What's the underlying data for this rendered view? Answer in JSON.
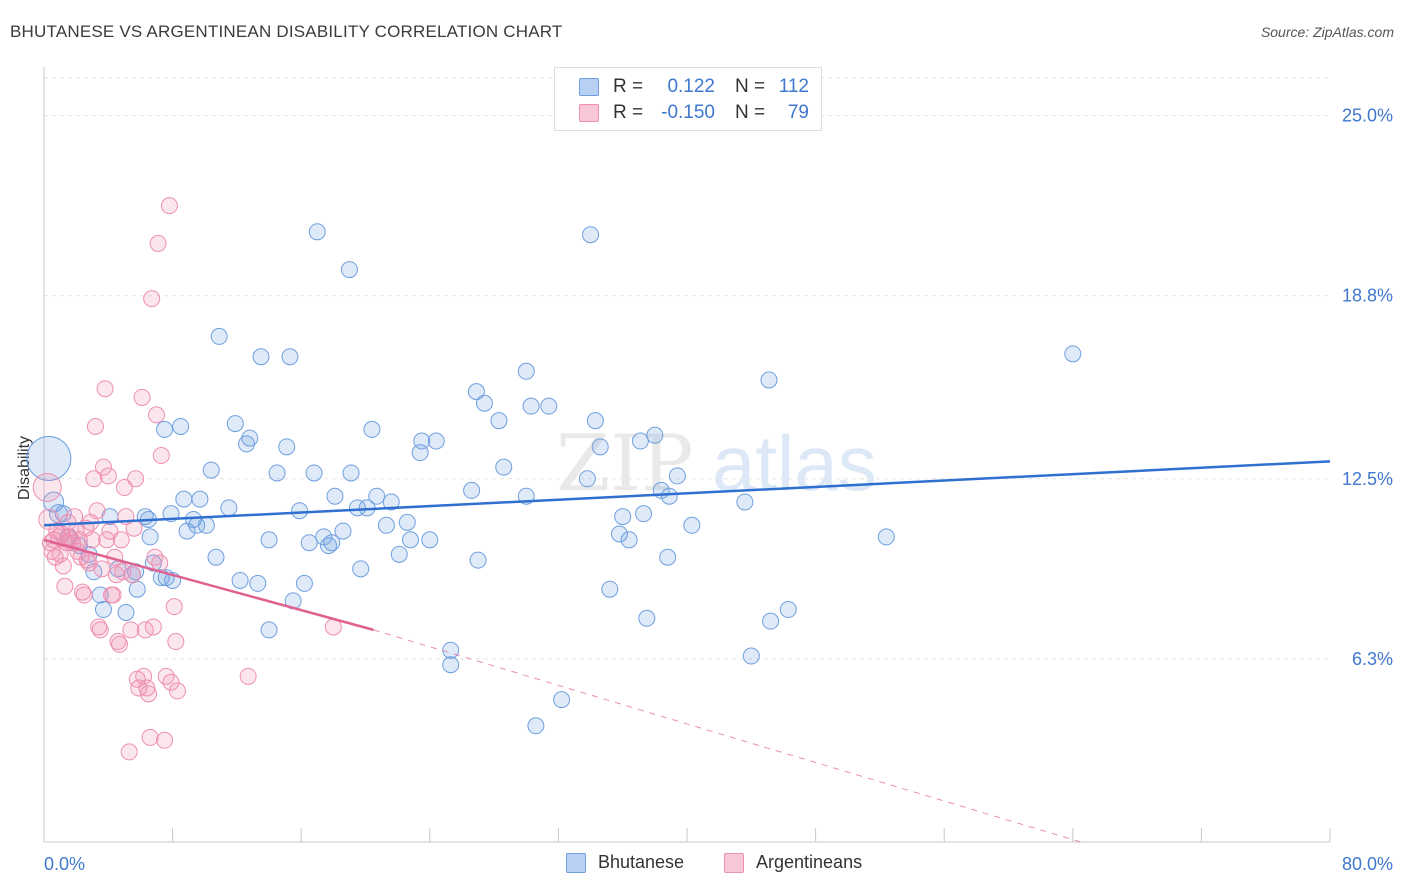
{
  "title": "BHUTANESE VS ARGENTINEAN DISABILITY CORRELATION CHART",
  "source": "Source: ZipAtlas.com",
  "watermark_a": "ZIP",
  "watermark_b": "atlas",
  "colors": {
    "blue": "#6f9fe0",
    "blue_line": "#2f6fd0",
    "pink": "#ef8fb0",
    "pink_line": "#e0608f",
    "tick_text": "#3f78cf"
  },
  "legend": {
    "rows": [
      {
        "r_label": "R =",
        "r_value": "0.122",
        "n_label": "N =",
        "n_value": "112"
      },
      {
        "r_label": "R =",
        "r_value": "-0.150",
        "n_label": "N =",
        "n_value": "79"
      }
    ]
  },
  "bottom_legend": [
    "Bhutanese",
    "Argentineans"
  ],
  "chart_data": {
    "type": "scatter",
    "title": "BHUTANESE VS ARGENTINEAN DISABILITY CORRELATION CHART",
    "xlabel": "",
    "ylabel": "Disability",
    "xlim": [
      0,
      80
    ],
    "ylim": [
      0,
      26.5
    ],
    "x_tick_labels": [
      "0.0%",
      "80.0%"
    ],
    "y_ticks": [
      6.3,
      12.5,
      18.8,
      25.0
    ],
    "y_tick_labels": [
      "6.3%",
      "12.5%",
      "18.8%",
      "25.0%"
    ],
    "grid": true,
    "legend_position": "top-center",
    "series": [
      {
        "name": "Bhutanese",
        "color": "#6f9fe0",
        "trend": {
          "x": [
            0,
            80
          ],
          "y": [
            10.9,
            13.1
          ],
          "style": "solid"
        },
        "points": [
          [
            0.3,
            13.2,
            22
          ],
          [
            0.6,
            11.7,
            10
          ],
          [
            0.9,
            11.3,
            9
          ],
          [
            1.2,
            11.3,
            8
          ],
          [
            1.5,
            10.5,
            8
          ],
          [
            2.2,
            10.2,
            8
          ],
          [
            2.8,
            9.9,
            8
          ],
          [
            3.1,
            9.3,
            8
          ],
          [
            3.5,
            8.5,
            8
          ],
          [
            3.7,
            8.0,
            8
          ],
          [
            4.1,
            11.2,
            8
          ],
          [
            4.6,
            9.4,
            8
          ],
          [
            5.1,
            7.9,
            8
          ],
          [
            5.5,
            9.2,
            8
          ],
          [
            5.7,
            9.3,
            8
          ],
          [
            5.8,
            8.7,
            8
          ],
          [
            6.3,
            11.2,
            8
          ],
          [
            6.5,
            11.1,
            8
          ],
          [
            6.6,
            10.5,
            8
          ],
          [
            6.8,
            9.6,
            8
          ],
          [
            7.3,
            9.1,
            8
          ],
          [
            7.5,
            14.2,
            8
          ],
          [
            7.6,
            9.1,
            8
          ],
          [
            7.9,
            11.3,
            8
          ],
          [
            8.0,
            9.0,
            8
          ],
          [
            8.5,
            14.3,
            8
          ],
          [
            8.7,
            11.8,
            8
          ],
          [
            8.9,
            10.7,
            8
          ],
          [
            9.3,
            11.1,
            8
          ],
          [
            9.5,
            10.9,
            8
          ],
          [
            9.7,
            11.8,
            8
          ],
          [
            10.1,
            10.9,
            8
          ],
          [
            10.4,
            12.8,
            8
          ],
          [
            10.7,
            9.8,
            8
          ],
          [
            10.9,
            17.4,
            8
          ],
          [
            11.5,
            11.5,
            8
          ],
          [
            11.9,
            14.4,
            8
          ],
          [
            12.2,
            9.0,
            8
          ],
          [
            12.6,
            13.7,
            8
          ],
          [
            12.8,
            13.9,
            8
          ],
          [
            13.3,
            8.9,
            8
          ],
          [
            13.5,
            16.7,
            8
          ],
          [
            14.0,
            10.4,
            8
          ],
          [
            14.0,
            7.3,
            8
          ],
          [
            14.5,
            12.7,
            8
          ],
          [
            15.1,
            13.6,
            8
          ],
          [
            15.3,
            16.7,
            8
          ],
          [
            15.5,
            8.3,
            8
          ],
          [
            15.9,
            11.4,
            8
          ],
          [
            16.2,
            8.9,
            8
          ],
          [
            16.5,
            10.3,
            8
          ],
          [
            16.8,
            12.7,
            8
          ],
          [
            17.0,
            21.0,
            8
          ],
          [
            17.4,
            10.5,
            8
          ],
          [
            17.7,
            10.2,
            8
          ],
          [
            17.9,
            10.3,
            8
          ],
          [
            18.1,
            11.9,
            8
          ],
          [
            18.6,
            10.7,
            8
          ],
          [
            19.0,
            19.7,
            8
          ],
          [
            19.1,
            12.7,
            8
          ],
          [
            19.5,
            11.5,
            8
          ],
          [
            19.7,
            9.4,
            8
          ],
          [
            20.1,
            11.5,
            8
          ],
          [
            20.4,
            14.2,
            8
          ],
          [
            20.7,
            11.9,
            8
          ],
          [
            21.3,
            10.9,
            8
          ],
          [
            21.6,
            11.7,
            8
          ],
          [
            22.1,
            9.9,
            8
          ],
          [
            22.6,
            11.0,
            8
          ],
          [
            22.8,
            10.4,
            8
          ],
          [
            23.4,
            13.4,
            8
          ],
          [
            23.5,
            13.8,
            8
          ],
          [
            24.0,
            10.4,
            8
          ],
          [
            24.4,
            13.8,
            8
          ],
          [
            25.3,
            6.6,
            8
          ],
          [
            25.3,
            6.1,
            8
          ],
          [
            26.6,
            12.1,
            8
          ],
          [
            26.9,
            15.5,
            8
          ],
          [
            27.0,
            9.7,
            8
          ],
          [
            27.4,
            15.1,
            8
          ],
          [
            28.3,
            14.5,
            8
          ],
          [
            28.6,
            12.9,
            8
          ],
          [
            30.0,
            16.2,
            8
          ],
          [
            30.0,
            11.9,
            8
          ],
          [
            30.3,
            15.0,
            8
          ],
          [
            30.6,
            4.0,
            8
          ],
          [
            31.4,
            15.0,
            8
          ],
          [
            32.2,
            4.9,
            8
          ],
          [
            33.8,
            12.5,
            8
          ],
          [
            34.0,
            20.9,
            8
          ],
          [
            34.3,
            14.5,
            8
          ],
          [
            34.6,
            13.6,
            8
          ],
          [
            35.2,
            8.7,
            8
          ],
          [
            35.8,
            10.6,
            8
          ],
          [
            36.0,
            11.2,
            8
          ],
          [
            36.4,
            10.4,
            8
          ],
          [
            37.1,
            13.8,
            8
          ],
          [
            37.3,
            11.3,
            8
          ],
          [
            37.5,
            7.7,
            8
          ],
          [
            38.0,
            14.0,
            8
          ],
          [
            38.4,
            12.1,
            8
          ],
          [
            38.8,
            9.8,
            8
          ],
          [
            38.9,
            11.9,
            8
          ],
          [
            39.4,
            12.6,
            8
          ],
          [
            40.3,
            10.9,
            8
          ],
          [
            43.6,
            11.7,
            8
          ],
          [
            44.0,
            6.4,
            8
          ],
          [
            45.1,
            15.9,
            8
          ],
          [
            45.2,
            7.6,
            8
          ],
          [
            46.3,
            8.0,
            8
          ],
          [
            64.0,
            16.8,
            8
          ],
          [
            52.4,
            10.5,
            8
          ]
        ]
      },
      {
        "name": "Argentineans",
        "color": "#ef8fb0",
        "trend": {
          "x": [
            0,
            20.5
          ],
          "y": [
            10.4,
            7.3
          ],
          "style": "solid"
        },
        "trend_extension": {
          "x": [
            20.5,
            64.5
          ],
          "y": [
            7.3,
            0.0
          ],
          "style": "dashed"
        },
        "points": [
          [
            0.2,
            12.2,
            14
          ],
          [
            0.3,
            11.1,
            10
          ],
          [
            0.4,
            10.3,
            8
          ],
          [
            0.5,
            10.0,
            8
          ],
          [
            0.6,
            10.4,
            8
          ],
          [
            0.7,
            9.8,
            8
          ],
          [
            0.8,
            10.7,
            8
          ],
          [
            0.9,
            10.5,
            8
          ],
          [
            1.0,
            9.9,
            8
          ],
          [
            1.1,
            10.6,
            8
          ],
          [
            1.2,
            9.5,
            8
          ],
          [
            1.3,
            8.8,
            8
          ],
          [
            1.4,
            10.3,
            8
          ],
          [
            1.5,
            11.0,
            8
          ],
          [
            1.6,
            10.5,
            8
          ],
          [
            1.7,
            10.4,
            8
          ],
          [
            1.8,
            10.3,
            8
          ],
          [
            1.9,
            11.2,
            8
          ],
          [
            2.0,
            10.7,
            8
          ],
          [
            2.1,
            10.0,
            8
          ],
          [
            2.2,
            10.4,
            8
          ],
          [
            2.3,
            9.8,
            8
          ],
          [
            2.4,
            8.6,
            8
          ],
          [
            2.5,
            8.5,
            8
          ],
          [
            2.6,
            10.8,
            8
          ],
          [
            2.7,
            9.7,
            8
          ],
          [
            2.8,
            9.6,
            8
          ],
          [
            2.9,
            11.0,
            8
          ],
          [
            3.0,
            10.4,
            8
          ],
          [
            3.1,
            12.5,
            8
          ],
          [
            3.2,
            14.3,
            8
          ],
          [
            3.3,
            11.4,
            8
          ],
          [
            3.4,
            7.4,
            8
          ],
          [
            3.5,
            7.3,
            8
          ],
          [
            3.6,
            9.4,
            8
          ],
          [
            3.7,
            12.9,
            8
          ],
          [
            3.8,
            15.6,
            8
          ],
          [
            3.9,
            10.4,
            8
          ],
          [
            4.0,
            12.6,
            8
          ],
          [
            4.1,
            10.7,
            8
          ],
          [
            4.2,
            8.5,
            8
          ],
          [
            4.3,
            8.5,
            8
          ],
          [
            4.4,
            9.8,
            8
          ],
          [
            4.5,
            9.2,
            8
          ],
          [
            4.6,
            6.9,
            8
          ],
          [
            4.7,
            6.8,
            8
          ],
          [
            4.8,
            10.4,
            8
          ],
          [
            4.9,
            9.3,
            8
          ],
          [
            5.0,
            12.2,
            8
          ],
          [
            5.1,
            11.2,
            8
          ],
          [
            5.3,
            3.1,
            8
          ],
          [
            5.4,
            7.3,
            8
          ],
          [
            5.5,
            9.2,
            8
          ],
          [
            5.6,
            10.8,
            8
          ],
          [
            5.7,
            12.5,
            8
          ],
          [
            5.8,
            5.6,
            8
          ],
          [
            5.9,
            5.3,
            8
          ],
          [
            6.1,
            15.3,
            8
          ],
          [
            6.2,
            5.7,
            8
          ],
          [
            6.3,
            7.3,
            8
          ],
          [
            6.4,
            5.3,
            8
          ],
          [
            6.5,
            5.1,
            8
          ],
          [
            6.6,
            3.6,
            8
          ],
          [
            6.7,
            18.7,
            8
          ],
          [
            6.8,
            7.4,
            8
          ],
          [
            6.9,
            9.8,
            8
          ],
          [
            7.0,
            14.7,
            8
          ],
          [
            7.1,
            20.6,
            8
          ],
          [
            7.2,
            9.6,
            8
          ],
          [
            7.3,
            13.3,
            8
          ],
          [
            7.5,
            3.5,
            8
          ],
          [
            7.6,
            5.7,
            8
          ],
          [
            7.8,
            21.9,
            8
          ],
          [
            7.9,
            5.5,
            8
          ],
          [
            8.1,
            8.1,
            8
          ],
          [
            8.2,
            6.9,
            8
          ],
          [
            8.3,
            5.2,
            8
          ],
          [
            12.7,
            5.7,
            8
          ],
          [
            18.0,
            7.4,
            8
          ]
        ]
      }
    ]
  }
}
